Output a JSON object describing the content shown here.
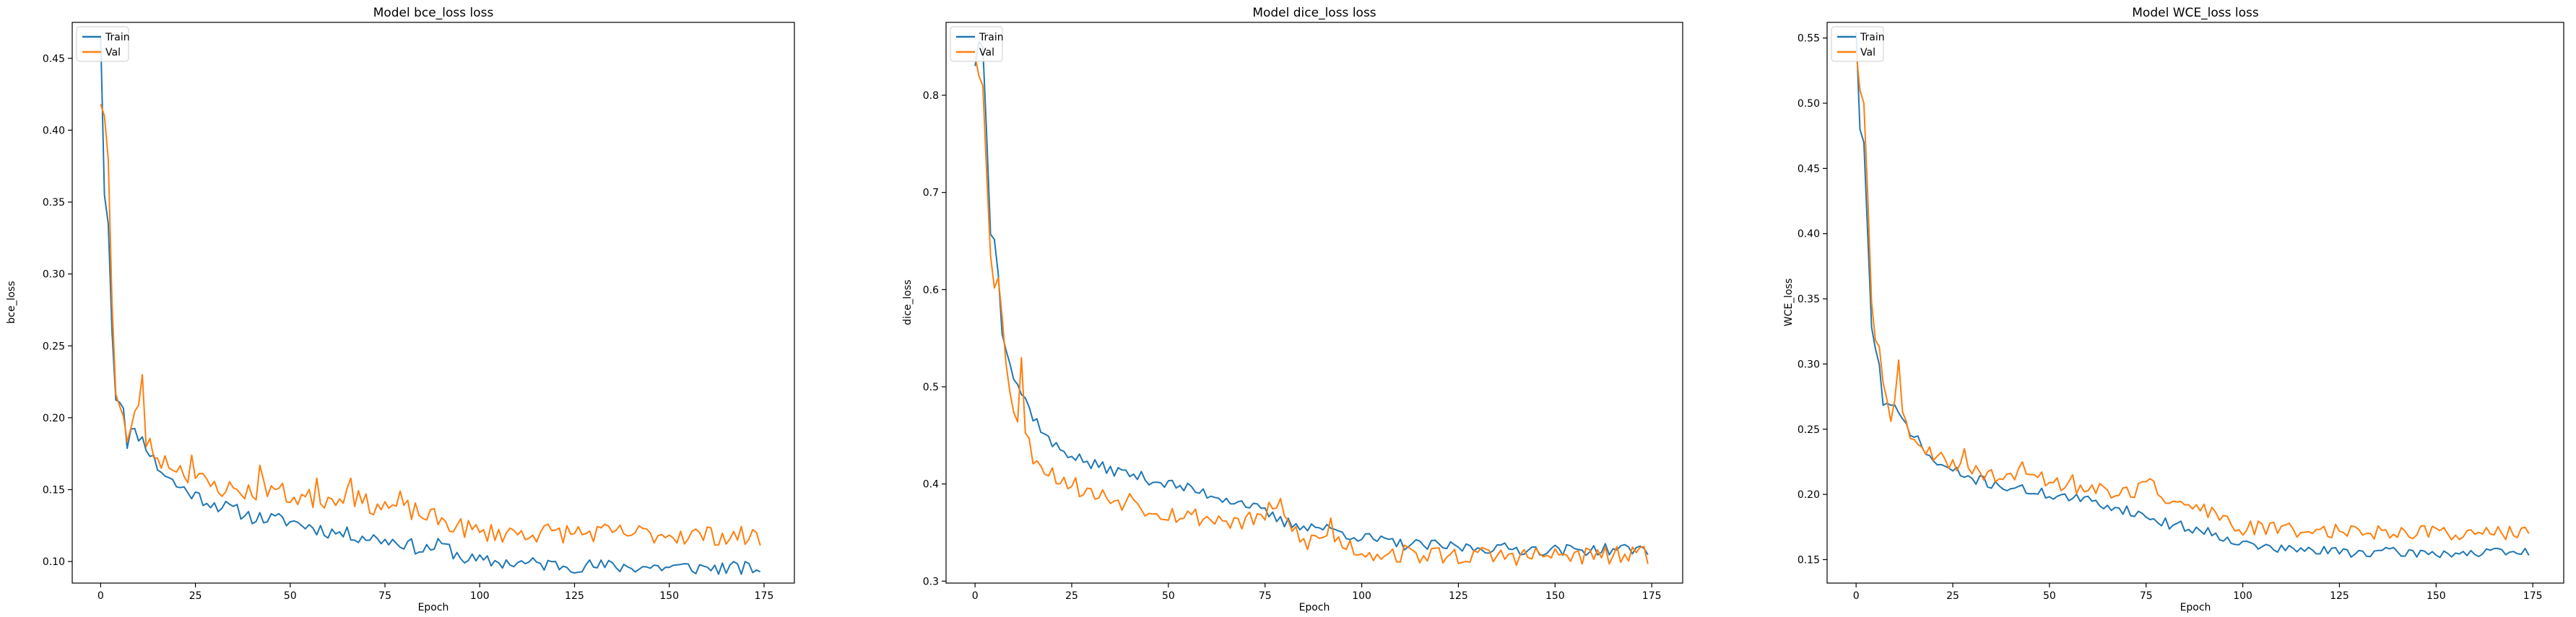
{
  "figure": {
    "background": "#ffffff"
  },
  "chart_data": [
    {
      "type": "line",
      "title": "Model bce_loss loss",
      "xlabel": "Epoch",
      "ylabel": "bce_loss",
      "xlim": [
        -7.5,
        183
      ],
      "ylim": [
        0.085,
        0.475
      ],
      "xticks": [
        0,
        25,
        50,
        75,
        100,
        125,
        150,
        175
      ],
      "yticks": [
        0.1,
        0.15,
        0.2,
        0.25,
        0.3,
        0.35,
        0.4,
        0.45
      ],
      "ytick_decimals": 2,
      "grid": false,
      "legend_position": "upper left",
      "x_count": 175,
      "series": [
        {
          "name": "Train",
          "color": "#1f77b4",
          "keypoints": [
            [
              0,
              0.465
            ],
            [
              1,
              0.355
            ],
            [
              2,
              0.335
            ],
            [
              3,
              0.26
            ],
            [
              4,
              0.215
            ],
            [
              5,
              0.213
            ],
            [
              6,
              0.208
            ],
            [
              7,
              0.183
            ],
            [
              8,
              0.19
            ],
            [
              10,
              0.188
            ],
            [
              12,
              0.181
            ],
            [
              15,
              0.166
            ],
            [
              20,
              0.153
            ],
            [
              25,
              0.146
            ],
            [
              30,
              0.14
            ],
            [
              35,
              0.136
            ],
            [
              40,
              0.131
            ],
            [
              50,
              0.128
            ],
            [
              60,
              0.121
            ],
            [
              70,
              0.117
            ],
            [
              80,
              0.113
            ],
            [
              85,
              0.108
            ],
            [
              90,
              0.112
            ],
            [
              95,
              0.103
            ],
            [
              100,
              0.1
            ],
            [
              110,
              0.099
            ],
            [
              125,
              0.097
            ],
            [
              150,
              0.096
            ],
            [
              174,
              0.095
            ]
          ],
          "noise": 0.005,
          "seed": 11
        },
        {
          "name": "Val",
          "color": "#ff7f0e",
          "keypoints": [
            [
              0,
              0.418
            ],
            [
              1,
              0.41
            ],
            [
              2,
              0.38
            ],
            [
              3,
              0.28
            ],
            [
              4,
              0.22
            ],
            [
              5,
              0.21
            ],
            [
              6,
              0.2
            ],
            [
              7,
              0.183
            ],
            [
              8,
              0.19
            ],
            [
              9,
              0.2
            ],
            [
              10,
              0.212
            ],
            [
              11,
              0.227
            ],
            [
              12,
              0.184
            ],
            [
              15,
              0.172
            ],
            [
              20,
              0.166
            ],
            [
              25,
              0.158
            ],
            [
              30,
              0.152
            ],
            [
              40,
              0.148
            ],
            [
              45,
              0.152
            ],
            [
              50,
              0.145
            ],
            [
              60,
              0.143
            ],
            [
              65,
              0.148
            ],
            [
              70,
              0.14
            ],
            [
              80,
              0.137
            ],
            [
              90,
              0.128
            ],
            [
              95,
              0.124
            ],
            [
              100,
              0.12
            ],
            [
              125,
              0.12
            ],
            [
              150,
              0.119
            ],
            [
              174,
              0.117
            ]
          ],
          "noise": 0.007,
          "seed": 23,
          "spikes": [
            [
              24,
              0.174
            ],
            [
              42,
              0.167
            ],
            [
              57,
              0.158
            ],
            [
              66,
              0.158
            ],
            [
              79,
              0.149
            ]
          ]
        }
      ]
    },
    {
      "type": "line",
      "title": "Model dice_loss loss",
      "xlabel": "Epoch",
      "ylabel": "dice_loss",
      "xlim": [
        -7.5,
        183
      ],
      "ylim": [
        0.298,
        0.875
      ],
      "xticks": [
        0,
        25,
        50,
        75,
        100,
        125,
        150,
        175
      ],
      "yticks": [
        0.3,
        0.4,
        0.5,
        0.6,
        0.7,
        0.8
      ],
      "ytick_decimals": 1,
      "grid": false,
      "legend_position": "upper left",
      "x_count": 175,
      "series": [
        {
          "name": "Train",
          "color": "#1f77b4",
          "keypoints": [
            [
              0,
              0.83
            ],
            [
              1,
              0.855
            ],
            [
              2,
              0.85
            ],
            [
              3,
              0.76
            ],
            [
              4,
              0.66
            ],
            [
              5,
              0.65
            ],
            [
              6,
              0.62
            ],
            [
              7,
              0.56
            ],
            [
              10,
              0.51
            ],
            [
              15,
              0.47
            ],
            [
              20,
              0.44
            ],
            [
              25,
              0.43
            ],
            [
              30,
              0.42
            ],
            [
              40,
              0.41
            ],
            [
              50,
              0.4
            ],
            [
              60,
              0.39
            ],
            [
              70,
              0.38
            ],
            [
              75,
              0.37
            ],
            [
              80,
              0.36
            ],
            [
              90,
              0.355
            ],
            [
              100,
              0.345
            ],
            [
              110,
              0.338
            ],
            [
              125,
              0.335
            ],
            [
              150,
              0.332
            ],
            [
              174,
              0.333
            ]
          ],
          "noise": 0.006,
          "seed": 37
        },
        {
          "name": "Val",
          "color": "#ff7f0e",
          "keypoints": [
            [
              0,
              0.84
            ],
            [
              1,
              0.82
            ],
            [
              2,
              0.81
            ],
            [
              3,
              0.72
            ],
            [
              4,
              0.64
            ],
            [
              5,
              0.61
            ],
            [
              6,
              0.62
            ],
            [
              7,
              0.57
            ],
            [
              8,
              0.52
            ],
            [
              10,
              0.48
            ],
            [
              15,
              0.43
            ],
            [
              20,
              0.41
            ],
            [
              25,
              0.4
            ],
            [
              30,
              0.39
            ],
            [
              40,
              0.38
            ],
            [
              50,
              0.37
            ],
            [
              60,
              0.365
            ],
            [
              70,
              0.36
            ],
            [
              78,
              0.375
            ],
            [
              85,
              0.34
            ],
            [
              90,
              0.345
            ],
            [
              95,
              0.34
            ],
            [
              100,
              0.33
            ],
            [
              110,
              0.328
            ],
            [
              125,
              0.326
            ],
            [
              150,
              0.326
            ],
            [
              174,
              0.326
            ]
          ],
          "noise": 0.01,
          "seed": 53,
          "spikes": [
            [
              12,
              0.53
            ],
            [
              40,
              0.39
            ],
            [
              79,
              0.385
            ],
            [
              92,
              0.365
            ]
          ]
        }
      ]
    },
    {
      "type": "line",
      "title": "Model WCE_loss loss",
      "xlabel": "Epoch",
      "ylabel": "WCE_loss",
      "xlim": [
        -7.5,
        183
      ],
      "ylim": [
        0.132,
        0.562
      ],
      "xticks": [
        0,
        25,
        50,
        75,
        100,
        125,
        150,
        175
      ],
      "yticks": [
        0.15,
        0.2,
        0.25,
        0.3,
        0.35,
        0.4,
        0.45,
        0.5,
        0.55
      ],
      "ytick_decimals": 2,
      "grid": false,
      "legend_position": "upper left",
      "x_count": 175,
      "series": [
        {
          "name": "Train",
          "color": "#1f77b4",
          "keypoints": [
            [
              0,
              0.555
            ],
            [
              1,
              0.48
            ],
            [
              2,
              0.47
            ],
            [
              3,
              0.4
            ],
            [
              4,
              0.33
            ],
            [
              5,
              0.31
            ],
            [
              6,
              0.3
            ],
            [
              7,
              0.27
            ],
            [
              10,
              0.265
            ],
            [
              15,
              0.245
            ],
            [
              20,
              0.225
            ],
            [
              25,
              0.218
            ],
            [
              30,
              0.212
            ],
            [
              40,
              0.205
            ],
            [
              50,
              0.2
            ],
            [
              60,
              0.195
            ],
            [
              70,
              0.188
            ],
            [
              80,
              0.178
            ],
            [
              90,
              0.172
            ],
            [
              95,
              0.168
            ],
            [
              100,
              0.162
            ],
            [
              110,
              0.158
            ],
            [
              125,
              0.156
            ],
            [
              150,
              0.155
            ],
            [
              174,
              0.155
            ]
          ],
          "noise": 0.004,
          "seed": 71
        },
        {
          "name": "Val",
          "color": "#ff7f0e",
          "keypoints": [
            [
              0,
              0.54
            ],
            [
              1,
              0.51
            ],
            [
              2,
              0.5
            ],
            [
              3,
              0.43
            ],
            [
              4,
              0.35
            ],
            [
              5,
              0.32
            ],
            [
              6,
              0.31
            ],
            [
              7,
              0.28
            ],
            [
              9,
              0.26
            ],
            [
              10,
              0.27
            ],
            [
              11,
              0.3
            ],
            [
              12,
              0.26
            ],
            [
              15,
              0.24
            ],
            [
              20,
              0.228
            ],
            [
              25,
              0.225
            ],
            [
              30,
              0.218
            ],
            [
              40,
              0.212
            ],
            [
              45,
              0.218
            ],
            [
              50,
              0.21
            ],
            [
              60,
              0.205
            ],
            [
              70,
              0.2
            ],
            [
              77,
              0.21
            ],
            [
              80,
              0.195
            ],
            [
              90,
              0.188
            ],
            [
              95,
              0.18
            ],
            [
              100,
              0.174
            ],
            [
              125,
              0.172
            ],
            [
              150,
              0.171
            ],
            [
              174,
              0.17
            ]
          ],
          "noise": 0.006,
          "seed": 89,
          "spikes": [
            [
              11,
              0.303
            ],
            [
              28,
              0.235
            ],
            [
              43,
              0.225
            ],
            [
              56,
              0.215
            ],
            [
              76,
              0.212
            ],
            [
              92,
              0.19
            ]
          ]
        }
      ]
    }
  ]
}
